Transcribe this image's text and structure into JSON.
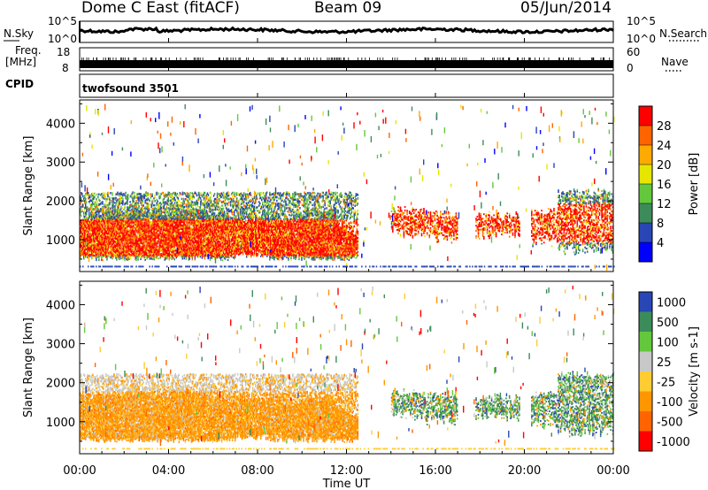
{
  "header": {
    "station": "Dome C East (fitACF)",
    "beam": "Beam 09",
    "date": "05/Jun/2014"
  },
  "side_labels": {
    "nsky": "N.Sky",
    "nsearch": "N.Search",
    "freq_line1": "Freq.",
    "freq_line2": "[MHz]",
    "nave": "Nave",
    "cpid": "CPID",
    "cpid_value": "twofsound 3501"
  },
  "noise_panel": {
    "left_ticks": [
      "10^5",
      "10^0"
    ],
    "right_ticks": [
      "10^5",
      "10^0"
    ]
  },
  "freq_panel": {
    "left_ticks": [
      "18",
      "8"
    ],
    "right_ticks": [
      "60",
      "0"
    ]
  },
  "x_axis": {
    "label": "Time UT",
    "ticks": [
      "00:00",
      "04:00",
      "08:00",
      "12:00",
      "16:00",
      "20:00",
      "00:00"
    ],
    "range_hours": [
      0,
      24
    ]
  },
  "colors": {
    "power_scale": [
      "#0000ff",
      "#2846b4",
      "#3c8c5a",
      "#64c83c",
      "#e6e600",
      "#ffaa00",
      "#ff6400",
      "#ff0000"
    ],
    "velocity_scale": [
      "#2846b4",
      "#3c8c5a",
      "#64c83c",
      "#c8c8c8",
      "#ffcc32",
      "#ff9600",
      "#ff6400",
      "#ff0000"
    ]
  },
  "chart_data": [
    {
      "type": "heatmap",
      "panel": "power",
      "ylabel": "Slant Range [km]",
      "ylim": [
        180,
        4600
      ],
      "yticks": [
        1000,
        2000,
        3000,
        4000
      ],
      "colorbar": {
        "label": "Power [dB]",
        "ticks": [
          "4",
          "8",
          "12",
          "16",
          "20",
          "24",
          "28"
        ],
        "range": [
          0,
          32
        ]
      },
      "echo_regions": [
        {
          "t_start": 0.0,
          "t_end": 12.5,
          "range_min": 450,
          "range_max": 2200,
          "dominant_value": "strong power (20-30 dB)"
        },
        {
          "t_start": 14.0,
          "t_end": 24.0,
          "range_min": 600,
          "range_max": 2300,
          "dominant_value": "patchy, moderate to strong power"
        }
      ]
    },
    {
      "type": "heatmap",
      "panel": "velocity",
      "ylabel": "Slant Range [km]",
      "ylim": [
        180,
        4600
      ],
      "yticks": [
        1000,
        2000,
        3000,
        4000
      ],
      "colorbar": {
        "label": "Velocity [m s-1]",
        "ticks": [
          "1000",
          "500",
          "100",
          "25",
          "-25",
          "-100",
          "-500",
          "-1000"
        ],
        "range": [
          -1250,
          1250
        ]
      },
      "echo_regions": [
        {
          "t_start": 0.0,
          "t_end": 12.5,
          "range_min": 450,
          "range_max": 2200,
          "dominant_value": "-100 to -500 m/s"
        },
        {
          "t_start": 14.0,
          "t_end": 24.0,
          "range_min": 600,
          "range_max": 2300,
          "dominant_value": "mixed, mostly 100 to 500 m/s"
        }
      ]
    }
  ]
}
